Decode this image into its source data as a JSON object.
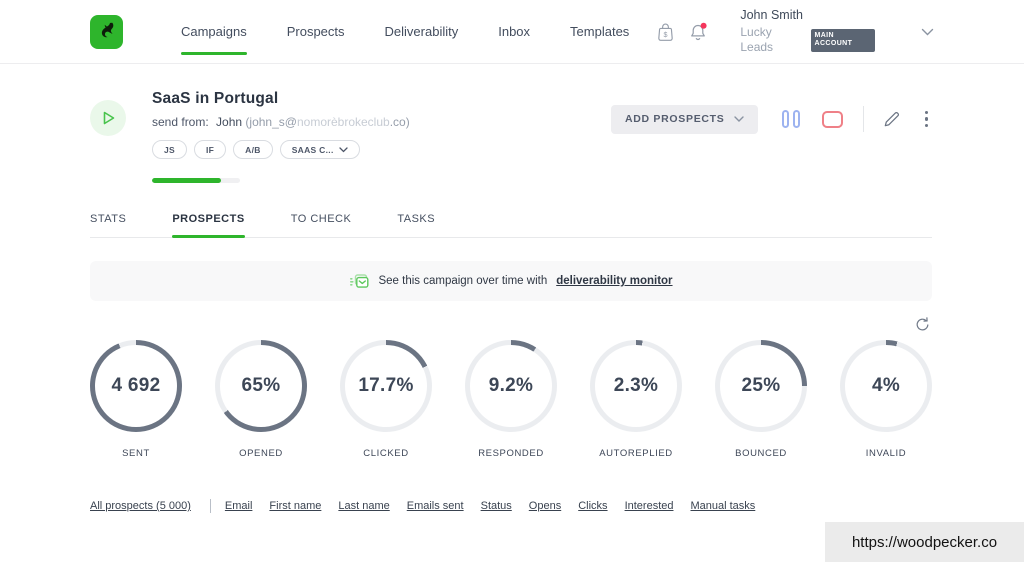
{
  "nav": {
    "items": [
      {
        "label": "Campaigns"
      },
      {
        "label": "Prospects"
      },
      {
        "label": "Deliverability"
      },
      {
        "label": "Inbox"
      },
      {
        "label": "Templates"
      }
    ],
    "user": {
      "name": "John Smith",
      "company": "Lucky Leads",
      "badge": "MAIN ACCOUNT"
    }
  },
  "campaign": {
    "title": "SaaS in Portugal",
    "send_from_label": "send from:",
    "sender_name": "John",
    "email_prefix": "(john_s@",
    "email_domain": "nomorèbrokeclub",
    "email_suffix": ".co)",
    "tags": [
      "JS",
      "IF",
      "A/B"
    ],
    "tag_dropdown": "SAAS C...",
    "progress_percent": 78,
    "actions": {
      "add_prospects": "ADD PROSPECTS"
    }
  },
  "tabs": [
    {
      "label": "STATS"
    },
    {
      "label": "PROSPECTS"
    },
    {
      "label": "TO CHECK"
    },
    {
      "label": "TASKS"
    }
  ],
  "banner": {
    "text": "See this campaign over time with",
    "link_label": "deliverability monitor"
  },
  "stats": {
    "items": [
      {
        "value": "4 692",
        "label": "SENT",
        "percent": 93.8
      },
      {
        "value": "65%",
        "label": "OPENED",
        "percent": 65
      },
      {
        "value": "17.7%",
        "label": "CLICKED",
        "percent": 17.7
      },
      {
        "value": "9.2%",
        "label": "RESPONDED",
        "percent": 9.2
      },
      {
        "value": "2.3%",
        "label": "AUTOREPLIED",
        "percent": 2.3
      },
      {
        "value": "25%",
        "label": "BOUNCED",
        "percent": 25
      },
      {
        "value": "4%",
        "label": "INVALID",
        "percent": 4
      }
    ]
  },
  "footer": {
    "all_prospects": "All prospects (5 000)",
    "links": [
      "Email",
      "First name",
      "Last name",
      "Emails sent",
      "Status",
      "Opens",
      "Clicks",
      "Interested",
      "Manual tasks"
    ]
  },
  "overlay": {
    "url": "https://woodpecker.co"
  },
  "colors": {
    "brand_green": "#2eb52c",
    "ring_filled": "#6b7483",
    "ring_empty": "#ebedf0",
    "alert_red": "#f5365c",
    "pause_blue": "#9db3f0",
    "stop_red": "#ef8087"
  }
}
